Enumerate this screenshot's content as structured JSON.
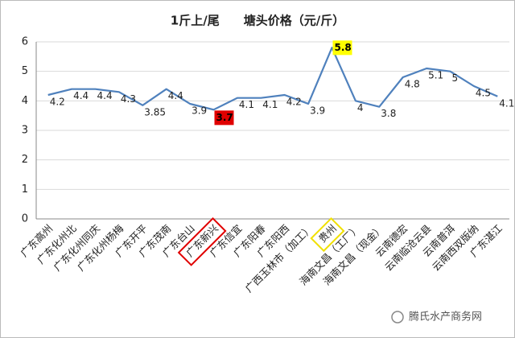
{
  "chart_data": {
    "type": "line",
    "title": "1斤上/尾　　塘头价格（元/斤）",
    "categories": [
      "广东高州",
      "广东化州北",
      "广东化州同庆",
      "广东化州杨梅",
      "广东开平",
      "广东茂南",
      "广东台山",
      "广东新兴",
      "广东信宜",
      "广东阳春",
      "广东阳西",
      "广西玉林市（加工）",
      "贵州",
      "海南文昌（工厂）",
      "海南文昌（现金）",
      "云南德宏",
      "云南临沧云县",
      "云南普洱",
      "云南西双版纳",
      "广东湛江"
    ],
    "values": [
      4.2,
      4.4,
      4.4,
      4.3,
      3.85,
      4.4,
      3.9,
      3.7,
      4.1,
      4.1,
      4.2,
      3.9,
      5.8,
      4,
      3.8,
      4.8,
      5.1,
      5,
      4.5,
      4.15
    ],
    "color": "#4f81bd",
    "ylim": [
      0,
      6
    ],
    "yticks": [
      0,
      1,
      2,
      3,
      4,
      5,
      6
    ],
    "grid": true,
    "highlights": [
      {
        "index": 7,
        "color": "#e00000"
      },
      {
        "index": 12,
        "color": "#ffff00"
      }
    ],
    "watermark": "腾氏水产商务网"
  }
}
